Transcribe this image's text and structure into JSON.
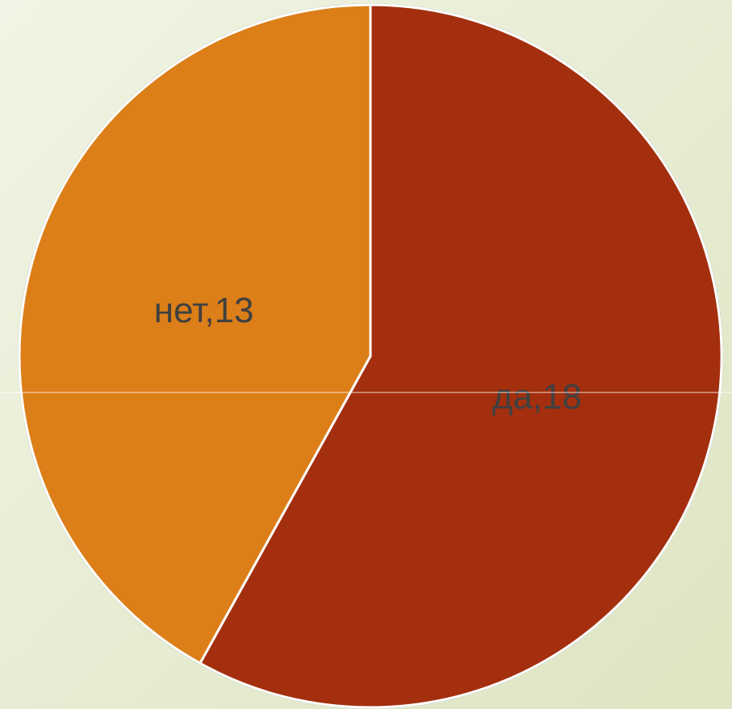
{
  "chart_data": {
    "type": "pie",
    "categories": [
      "да",
      "нет"
    ],
    "values": [
      18,
      13
    ],
    "value_labels": [
      "да,18",
      "нет,13"
    ],
    "colors": [
      "#a42f0e",
      "#dc7f18"
    ]
  }
}
